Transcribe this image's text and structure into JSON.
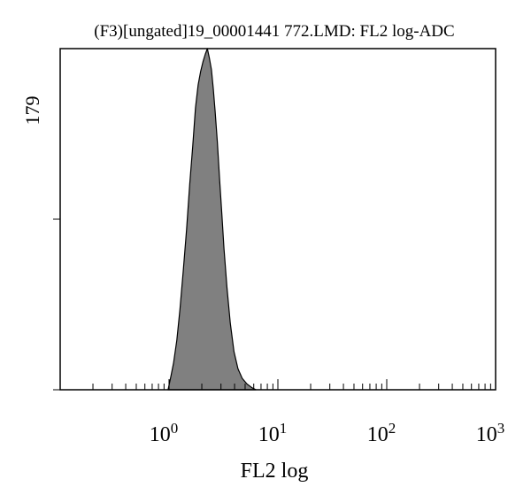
{
  "chart_data": {
    "type": "area",
    "title": "(F3)[ungated]19_00001441 772.LMD: FL2 log-ADC",
    "xlabel": "FL2 log",
    "ylabel": "",
    "x_scale": "log",
    "xlim": [
      0.1,
      1000
    ],
    "ylim": [
      0,
      179
    ],
    "y_tick_labels": [
      {
        "value": 179,
        "label": "179"
      }
    ],
    "x_tick_labels": [
      {
        "value": 1,
        "base": "10",
        "exp": "0"
      },
      {
        "value": 10,
        "base": "10",
        "exp": "1"
      },
      {
        "value": 100,
        "base": "10",
        "exp": "2"
      },
      {
        "value": 1000,
        "base": "10",
        "exp": "3"
      }
    ],
    "series": [
      {
        "fill": "#808080",
        "x": [
          0.98,
          1.04,
          1.1,
          1.18,
          1.26,
          1.35,
          1.45,
          1.55,
          1.65,
          1.75,
          1.85,
          1.95,
          2.05,
          2.15,
          2.25,
          2.35,
          2.45,
          2.55,
          2.65,
          2.78,
          2.92,
          3.06,
          3.2,
          3.4,
          3.65,
          3.95,
          4.3,
          4.7,
          5.2,
          5.8,
          6.3
        ],
        "y": [
          0,
          7,
          14,
          26,
          42,
          62,
          84,
          108,
          128,
          148,
          160,
          167,
          172,
          176,
          179,
          174,
          168,
          158,
          146,
          130,
          110,
          92,
          74,
          54,
          35,
          20,
          11,
          6,
          3,
          1,
          0
        ]
      }
    ],
    "grid": false,
    "legend": "none",
    "colors": {
      "fill": "#808080",
      "line": "#000000"
    }
  }
}
